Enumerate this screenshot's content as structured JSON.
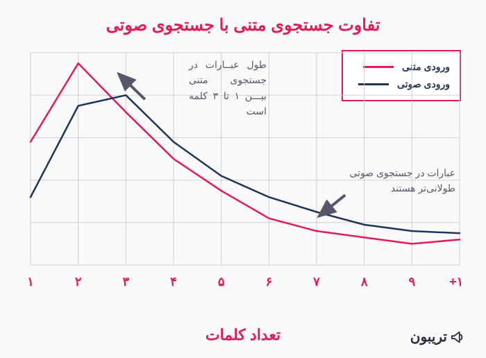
{
  "title": "تفاوت جستجوی متنی با جستجوی صوتی",
  "xaxis_label": "تعداد کلمات",
  "brand": "تریبون",
  "legend": {
    "items": [
      {
        "label": "ورودی متنی",
        "color": "#e31b54"
      },
      {
        "label": "ورودی صوتی",
        "color": "#1b3559"
      }
    ]
  },
  "annotations": {
    "a1": "طول عبــارات در جستجوی  متنی بیـــن ۱ تا ۳ کلمه است",
    "a2": "عبارات در جستجوی صوتی طولانی‌تر هستند"
  },
  "chart": {
    "type": "line",
    "categories": [
      "۱",
      "۲",
      "۳",
      "۴",
      "۵",
      "۶",
      "۷",
      "۸",
      "۹",
      "۱۰+"
    ],
    "ylim": [
      0,
      100
    ],
    "grid_color": "#cfcfd6",
    "background_color": "#fafafa",
    "line_width": 2.5,
    "arrow_color": "#55586b",
    "series": [
      {
        "name": "text",
        "color": "#e31b54",
        "values": [
          58,
          95,
          72,
          50,
          35,
          22,
          16,
          13,
          10,
          12
        ]
      },
      {
        "name": "voice",
        "color": "#1b3559",
        "values": [
          32,
          75,
          80,
          58,
          42,
          32,
          25,
          19,
          16,
          15
        ]
      }
    ],
    "arrows": [
      {
        "from": [
          3.4,
          78
        ],
        "to": [
          2.85,
          90
        ]
      },
      {
        "from": [
          7.6,
          33
        ],
        "to": [
          7.05,
          23
        ]
      }
    ]
  },
  "style": {
    "title_color": "#e31b54",
    "title_fontsize": 24,
    "axis_label_color": "#e31b54",
    "axis_label_fontsize": 22,
    "tick_color": "#e31b54",
    "tick_fontsize": 18,
    "annotation_color": "#55586b",
    "annotation_fontsize": 14,
    "legend_border_color": "#e31b54",
    "legend_bg": "#ffffff",
    "legend_text_color": "#253858"
  }
}
